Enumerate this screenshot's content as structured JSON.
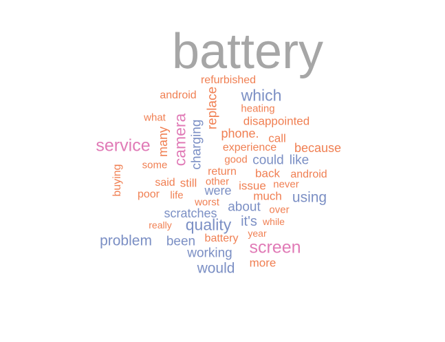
{
  "colors": {
    "top": "#a6a6a6",
    "pink": "#e07ab6",
    "blue": "#7b8fc4",
    "orange": "#f07f52"
  },
  "words": [
    {
      "text": "battery",
      "color": "top"
    },
    {
      "text": "refurbished",
      "color": "orange"
    },
    {
      "text": "android",
      "color": "orange"
    },
    {
      "text": "replace",
      "color": "orange"
    },
    {
      "text": "which",
      "color": "blue"
    },
    {
      "text": "heating",
      "color": "orange"
    },
    {
      "text": "what",
      "color": "orange"
    },
    {
      "text": "camera",
      "color": "pink"
    },
    {
      "text": "charging",
      "color": "blue"
    },
    {
      "text": "disappointed",
      "color": "orange"
    },
    {
      "text": "many",
      "color": "orange"
    },
    {
      "text": "phone.",
      "color": "orange"
    },
    {
      "text": "call",
      "color": "orange"
    },
    {
      "text": "service",
      "color": "pink"
    },
    {
      "text": "experience",
      "color": "orange"
    },
    {
      "text": "because",
      "color": "orange"
    },
    {
      "text": "good",
      "color": "orange"
    },
    {
      "text": "could",
      "color": "blue"
    },
    {
      "text": "like",
      "color": "blue"
    },
    {
      "text": "some",
      "color": "orange"
    },
    {
      "text": "buying",
      "color": "orange"
    },
    {
      "text": "return",
      "color": "orange"
    },
    {
      "text": "back",
      "color": "orange"
    },
    {
      "text": "android",
      "color": "orange"
    },
    {
      "text": "said",
      "color": "orange"
    },
    {
      "text": "still",
      "color": "orange"
    },
    {
      "text": "other",
      "color": "orange"
    },
    {
      "text": "issue",
      "color": "orange"
    },
    {
      "text": "never",
      "color": "orange"
    },
    {
      "text": "were",
      "color": "blue"
    },
    {
      "text": "poor",
      "color": "orange"
    },
    {
      "text": "life",
      "color": "orange"
    },
    {
      "text": "much",
      "color": "orange"
    },
    {
      "text": "using",
      "color": "blue"
    },
    {
      "text": "worst",
      "color": "orange"
    },
    {
      "text": "about",
      "color": "blue"
    },
    {
      "text": "scratches",
      "color": "blue"
    },
    {
      "text": "over",
      "color": "orange"
    },
    {
      "text": "it's",
      "color": "blue"
    },
    {
      "text": "while",
      "color": "orange"
    },
    {
      "text": "really",
      "color": "orange"
    },
    {
      "text": "quality",
      "color": "blue"
    },
    {
      "text": "year",
      "color": "orange"
    },
    {
      "text": "problem",
      "color": "blue"
    },
    {
      "text": "been",
      "color": "blue"
    },
    {
      "text": "battery",
      "color": "orange"
    },
    {
      "text": "screen",
      "color": "pink"
    },
    {
      "text": "working",
      "color": "blue"
    },
    {
      "text": "more",
      "color": "orange"
    },
    {
      "text": "would",
      "color": "blue"
    }
  ]
}
